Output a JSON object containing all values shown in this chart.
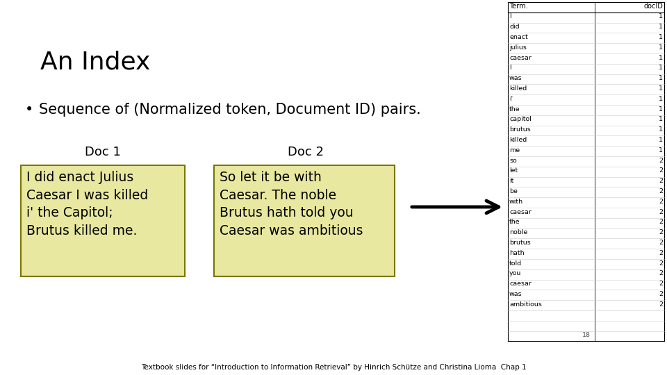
{
  "title": "An Index",
  "bullet": "Sequence of (Normalized token, Document ID) pairs.",
  "doc1_label": "Doc 1",
  "doc2_label": "Doc 2",
  "doc1_text": "I did enact Julius\nCaesar I was killed\ni' the Capitol;\nBrutus killed me.",
  "doc2_text": "So let it be with\nCaesar. The noble\nBrutus hath told you\nCaesar was ambitious",
  "footer": "Textbook slides for “Introduction to Information Retrieval” by Hinrich Schütze and Christina Lioma  Chap 1",
  "page_num": "18",
  "bg_color": "#ffffff",
  "box_fill": "#e8e8a0",
  "box_edge": "#777700",
  "table_terms": [
    "I",
    "did",
    "enact",
    "julius",
    "caesar",
    "I",
    "was",
    "killed",
    "i'",
    "the",
    "capitol",
    "brutus",
    "killed",
    "me",
    "so",
    "let",
    "it",
    "be",
    "with",
    "caesar",
    "the",
    "noble",
    "brutus",
    "hath",
    "told",
    "you",
    "caesar",
    "was",
    "ambitious"
  ],
  "table_docids": [
    1,
    1,
    1,
    1,
    1,
    1,
    1,
    1,
    1,
    1,
    1,
    1,
    1,
    1,
    2,
    2,
    2,
    2,
    2,
    2,
    2,
    2,
    2,
    2,
    2,
    2,
    2,
    2,
    2
  ],
  "table_header_term": "Term.",
  "table_header_docid": "docID"
}
